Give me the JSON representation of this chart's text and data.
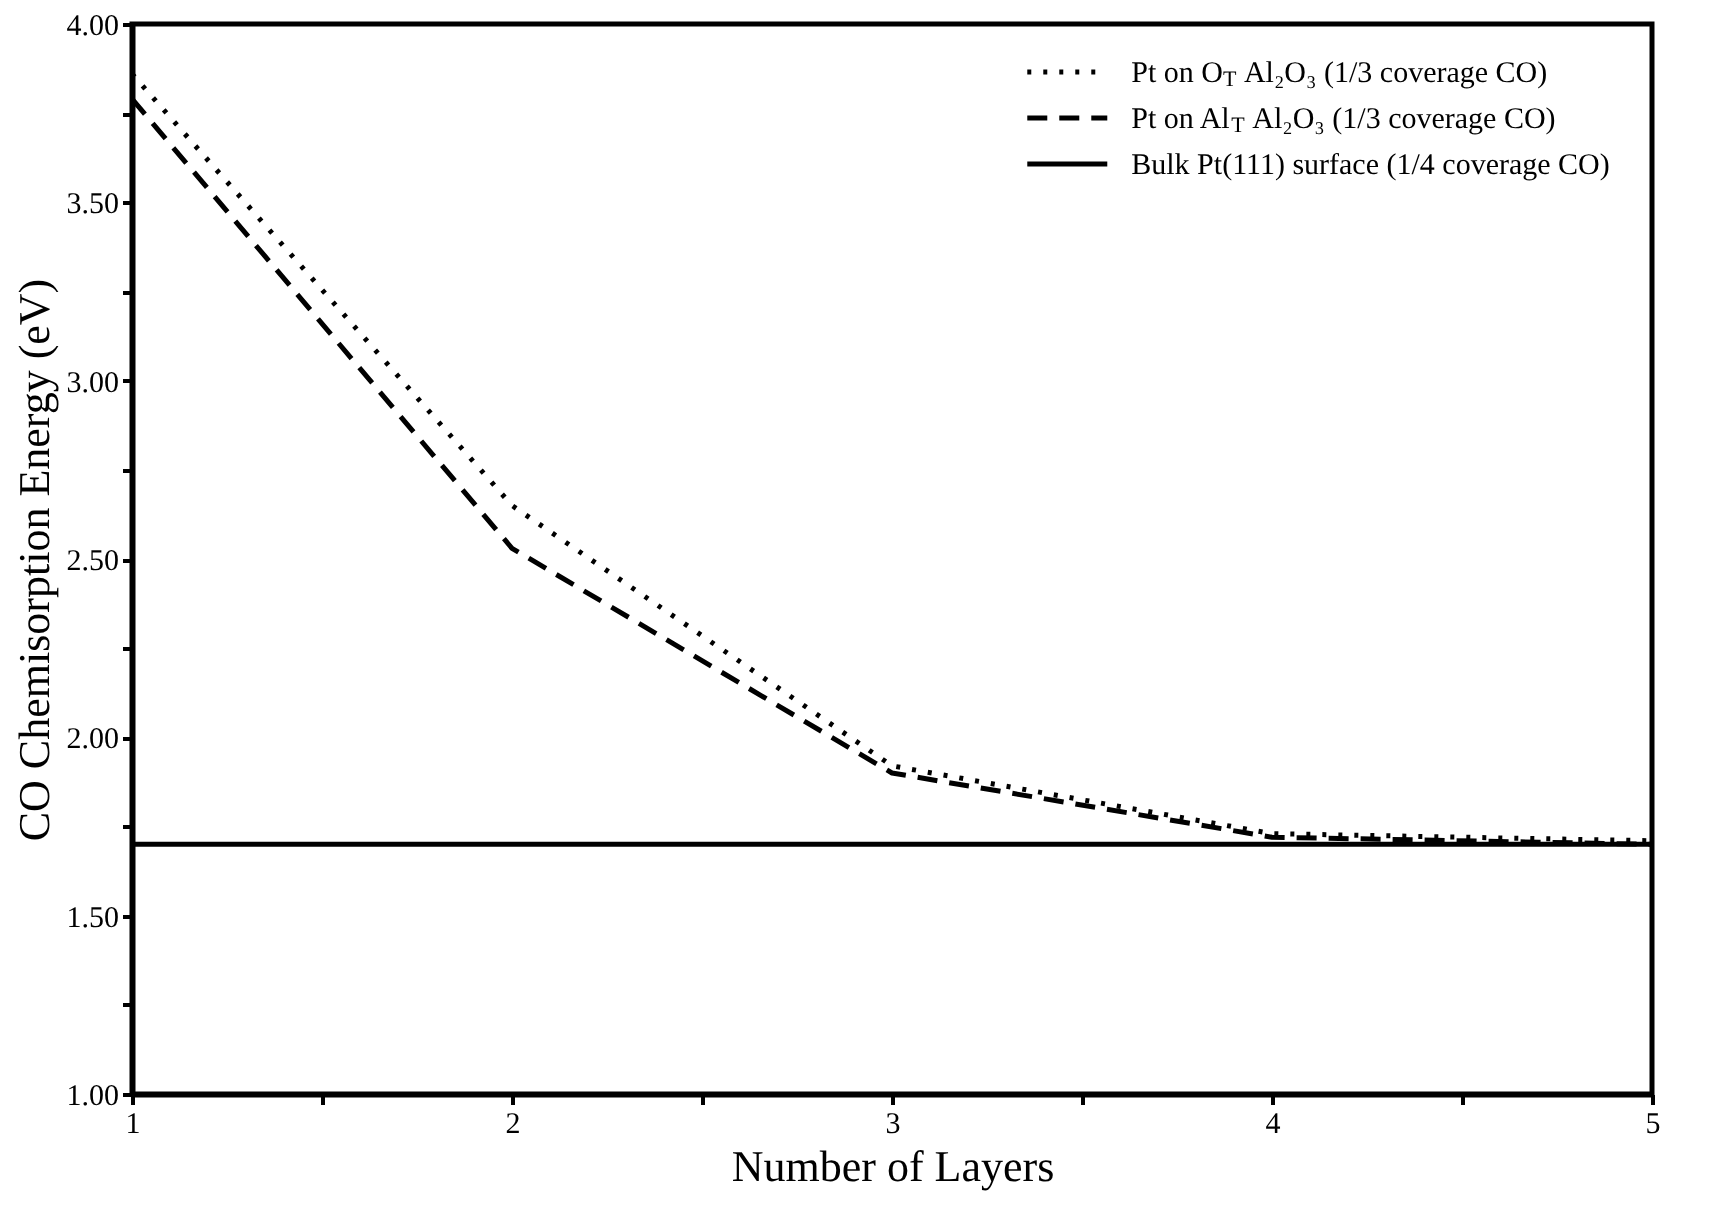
{
  "chart_data": {
    "type": "line",
    "xlabel": "Number of Layers",
    "ylabel": "CO Chemisorption Energy (eV)",
    "x": [
      1,
      2,
      3,
      4,
      5
    ],
    "series": [
      {
        "name": "Pt on O$_{T}$ Al₂O₃ (1/3 coverage CO)",
        "color": "#000000",
        "line_style": "dotted",
        "values": [
          3.86,
          2.65,
          1.92,
          1.73,
          1.71
        ]
      },
      {
        "name": "Pt on Al$_{T}$ Al₂O₃ (1/3 coverage CO)",
        "color": "#000000",
        "line_style": "dashed",
        "values": [
          3.79,
          2.53,
          1.9,
          1.72,
          1.7
        ]
      },
      {
        "name": "Bulk Pt(111) surface (1/4 coverage CO)",
        "color": "#000000",
        "line_style": "solid",
        "x": [
          1,
          5
        ],
        "values": [
          1.7,
          1.7
        ]
      }
    ],
    "xlim": [
      1,
      5
    ],
    "xticks": [
      1,
      {
        "value": 1.5,
        "label": null
      },
      2,
      {
        "value": 2.5,
        "label": null
      },
      3,
      {
        "value": 3.5,
        "label": null
      },
      4,
      {
        "value": 4.5,
        "label": null
      },
      5
    ],
    "ylim": [
      1,
      4
    ],
    "yticks": [
      {
        "value": 1,
        "label": "1.00"
      },
      {
        "value": 1.25,
        "label": null
      },
      {
        "value": 1.5,
        "label": "1.50"
      },
      {
        "value": 1.75,
        "label": null
      },
      {
        "value": 2,
        "label": "2.00"
      },
      {
        "value": 2.25,
        "label": null
      },
      {
        "value": 2.5,
        "label": "2.50"
      },
      {
        "value": 2.75,
        "label": null
      },
      {
        "value": 3,
        "label": "3.00"
      },
      {
        "value": 3.25,
        "label": null
      },
      {
        "value": 3.5,
        "label": "3.50"
      },
      {
        "value": 3.75,
        "label": null
      },
      {
        "value": 4,
        "label": "4.00"
      }
    ],
    "grid": false,
    "legend": "top right",
    "marker": "none"
  }
}
